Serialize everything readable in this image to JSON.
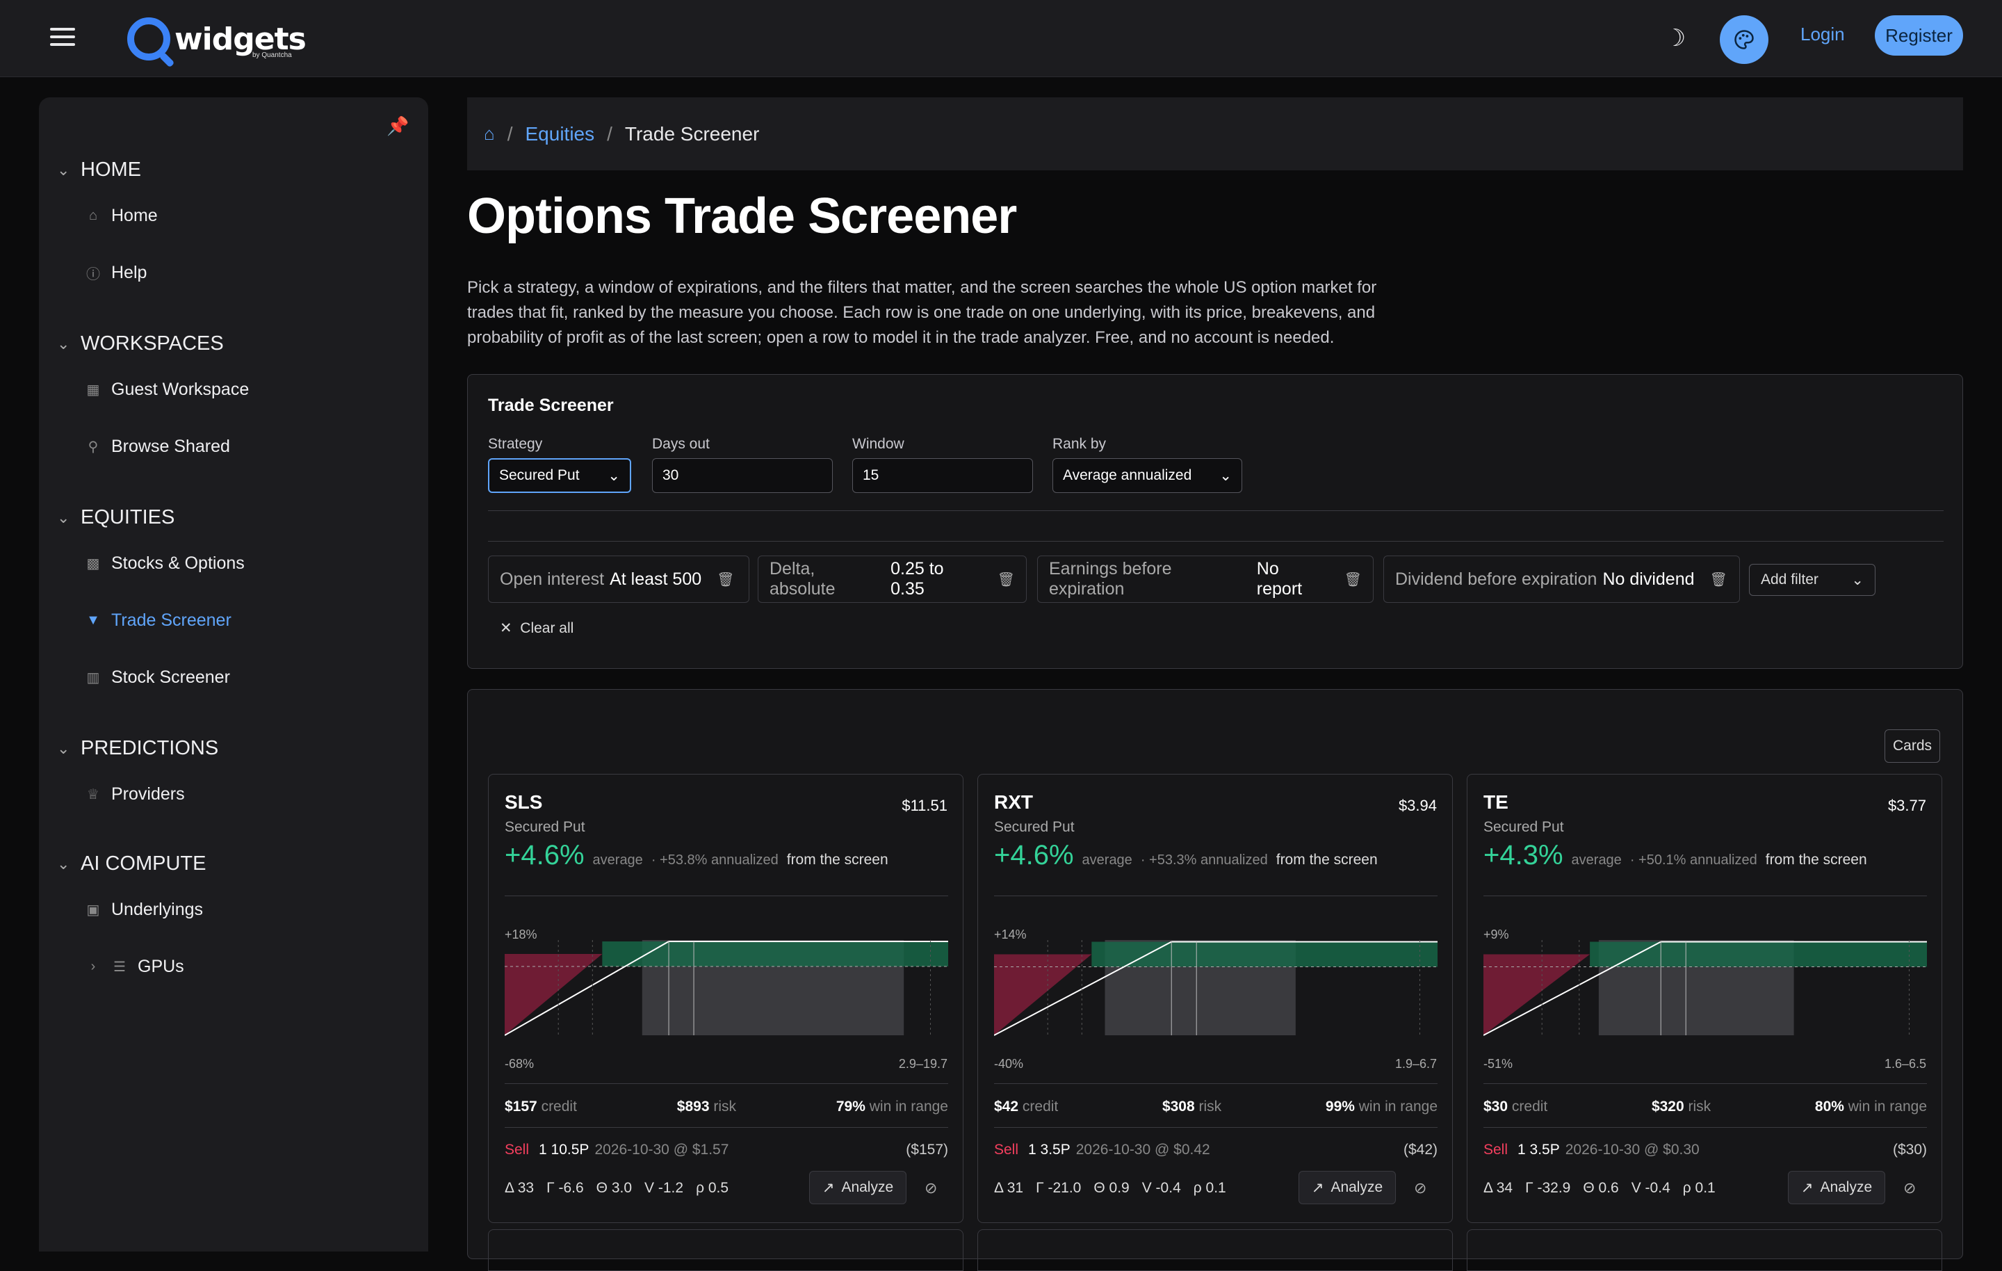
{
  "brand": {
    "name": "widgets",
    "byline": "by Quantcha",
    "accent": "#60a5fa"
  },
  "header": {
    "login": "Login",
    "register": "Register"
  },
  "sidebar": {
    "sections": [
      {
        "label": "HOME",
        "items": [
          {
            "label": "Home",
            "icon": "home-icon"
          },
          {
            "label": "Help",
            "icon": "help-circle-icon"
          }
        ]
      },
      {
        "label": "WORKSPACES",
        "items": [
          {
            "label": "Guest Workspace",
            "icon": "grid-icon"
          },
          {
            "label": "Browse Shared",
            "icon": "search-icon"
          }
        ]
      },
      {
        "label": "EQUITIES",
        "items": [
          {
            "label": "Stocks & Options",
            "icon": "bar-chart-icon"
          },
          {
            "label": "Trade Screener",
            "icon": "filter-icon"
          },
          {
            "label": "Stock Screener",
            "icon": "building-icon"
          }
        ]
      },
      {
        "label": "PREDICTIONS",
        "items": [
          {
            "label": "Providers",
            "icon": "crown-icon"
          }
        ]
      },
      {
        "label": "AI COMPUTE",
        "items": [
          {
            "label": "Underlyings",
            "icon": "chip-icon"
          },
          {
            "label": "GPUs",
            "icon": "list-icon"
          }
        ]
      }
    ]
  },
  "breadcrumb": {
    "section": "Equities",
    "current": "Trade Screener"
  },
  "page": {
    "title": "Options Trade Screener",
    "intro": "Pick a strategy, a window of expirations, and the filters that matter, and the screen searches the whole US option market for trades that fit, ranked by the measure you choose. Each row is one trade on one underlying, with its price, breakevens, and probability of profit as of the last screen; open a row to model it in the trade analyzer. Free, and no account is needed."
  },
  "screener": {
    "title": "Trade Screener",
    "strategy": {
      "label": "Strategy",
      "value": "Secured Put"
    },
    "days_out": {
      "label": "Days out",
      "value": "30"
    },
    "window": {
      "label": "Window",
      "value": "15"
    },
    "rank_by": {
      "label": "Rank by",
      "value": "Average annualized"
    },
    "filters": [
      {
        "name": "Open interest",
        "value": "At least 500"
      },
      {
        "name": "Delta, absolute",
        "value": "0.25 to 0.35"
      },
      {
        "name": "Earnings before expiration",
        "value": "No report"
      },
      {
        "name": "Dividend before expiration",
        "value": "No dividend"
      }
    ],
    "add_filter": "Add filter",
    "clear_all": "Clear all"
  },
  "results": {
    "view_label": "Cards",
    "cards": [
      {
        "symbol": "SLS",
        "price": "$11.51",
        "strategy": "Secured Put",
        "return": "+4.6%",
        "average": "average",
        "annualized": "· +53.8% annualized",
        "from": "from the screen",
        "ytop": "+18%",
        "ybot": "-68%",
        "range": "2.9–19.7",
        "credit": "$157",
        "credit_lbl": "credit",
        "risk": "$893",
        "risk_lbl": "risk",
        "win": "79%",
        "win_lbl": "win in range",
        "leg_side": "Sell",
        "leg": "1 10.5P",
        "leg_detail": "2026-10-30 @ $1.57",
        "leg_total": "($157)",
        "greeks": [
          "Δ 33",
          "Γ -6.6",
          "Θ 3.0",
          "V -1.2",
          "ρ 0.5"
        ],
        "analyze": "Analyze"
      },
      {
        "symbol": "RXT",
        "price": "$3.94",
        "strategy": "Secured Put",
        "return": "+4.6%",
        "average": "average",
        "annualized": "· +53.3% annualized",
        "from": "from the screen",
        "ytop": "+14%",
        "ybot": "-40%",
        "range": "1.9–6.7",
        "credit": "$42",
        "credit_lbl": "credit",
        "risk": "$308",
        "risk_lbl": "risk",
        "win": "99%",
        "win_lbl": "win in range",
        "leg_side": "Sell",
        "leg": "1 3.5P",
        "leg_detail": "2026-10-30 @ $0.42",
        "leg_total": "($42)",
        "greeks": [
          "Δ 31",
          "Γ -21.0",
          "Θ 0.9",
          "V -0.4",
          "ρ 0.1"
        ],
        "analyze": "Analyze"
      },
      {
        "symbol": "TE",
        "price": "$3.77",
        "strategy": "Secured Put",
        "return": "+4.3%",
        "average": "average",
        "annualized": "· +50.1% annualized",
        "from": "from the screen",
        "ytop": "+9%",
        "ybot": "-51%",
        "range": "1.6–6.5",
        "credit": "$30",
        "credit_lbl": "credit",
        "risk": "$320",
        "risk_lbl": "risk",
        "win": "80%",
        "win_lbl": "win in range",
        "leg_side": "Sell",
        "leg": "1 3.5P",
        "leg_detail": "2026-10-30 @ $0.30",
        "leg_total": "($30)",
        "greeks": [
          "Δ 34",
          "Γ -32.9",
          "Θ 0.6",
          "V -0.4",
          "ρ 0.1"
        ],
        "analyze": "Analyze"
      }
    ]
  }
}
